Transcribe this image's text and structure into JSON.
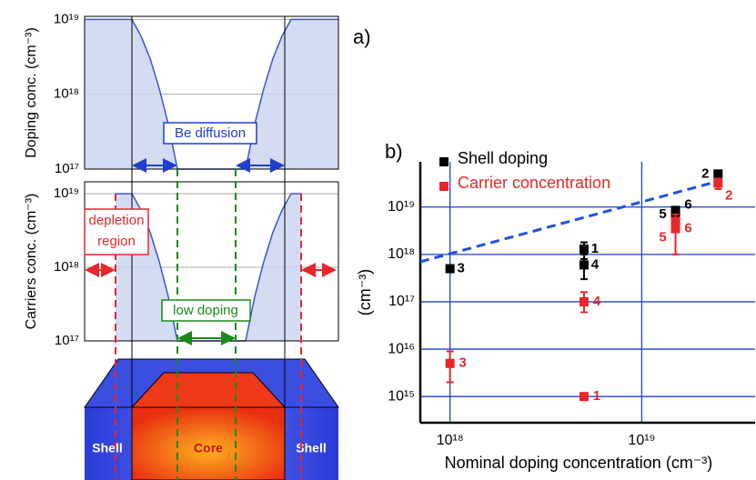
{
  "chart_data": [
    {
      "type": "area",
      "ylabel": "Doping conc. (cm⁻³)",
      "xlim": [
        0,
        279
      ],
      "x": [
        0,
        52,
        62,
        72,
        82,
        92,
        102,
        177,
        187,
        197,
        207,
        217,
        227,
        279
      ],
      "values": [
        1e+19,
        1e+19,
        6e+18,
        3e+18,
        1.2e+18,
        4e+17,
        1e+17,
        1e+17,
        4e+17,
        1.2e+18,
        3e+18,
        6e+18,
        1e+19,
        1e+19
      ],
      "ylim": [
        1e+17,
        1.1e+19
      ],
      "log_y": true,
      "yticks": [
        {
          "value": 1e+17,
          "label": "10¹⁷"
        },
        {
          "value": 1e+18,
          "label": "10¹⁸"
        },
        {
          "value": 1e+19,
          "label": "10¹⁹"
        }
      ],
      "color": "#3a55d0",
      "fill": "#cdd6f2",
      "grid": true
    },
    {
      "type": "area",
      "ylabel": "Carriers conc. (cm⁻³)",
      "xlim": [
        0,
        279
      ],
      "x": [
        34,
        52,
        62,
        72,
        82,
        92,
        102,
        177,
        187,
        197,
        207,
        217,
        227,
        238
      ],
      "values": [
        1e+19,
        1e+19,
        6e+18,
        3e+18,
        1.2e+18,
        4e+17,
        1e+17,
        1e+17,
        4e+17,
        1.2e+18,
        3e+18,
        6e+18,
        1e+19,
        1e+19
      ],
      "ylim": [
        1e+17,
        1.45e+19
      ],
      "log_y": true,
      "yticks": [
        {
          "value": 1e+17,
          "label": "10¹⁷"
        },
        {
          "value": 1e+18,
          "label": "10¹⁸"
        },
        {
          "value": 1e+19,
          "label": "10¹⁹"
        }
      ],
      "color": "#3a55d0",
      "fill": "#cdd6f2",
      "grid": true
    },
    {
      "type": "scatter",
      "xlabel": "Nominal doping concentration (cm⁻³)",
      "ylabel": "(cm⁻³)",
      "log_x": true,
      "log_y": true,
      "grid": true,
      "legend": "top-left",
      "xlim": [
        7e+17,
        3.9e+19
      ],
      "ylim": [
        280000000000000.0,
        9e+19
      ],
      "xticks": [
        {
          "value": 1e+18,
          "label": "10¹⁸"
        },
        {
          "value": 1e+19,
          "label": "10¹⁹"
        }
      ],
      "yticks": [
        {
          "value": 1000000000000000.0,
          "label": "10¹⁵"
        },
        {
          "value": 1e+16,
          "label": "10¹⁶"
        },
        {
          "value": 1e+17,
          "label": "10¹⁷"
        },
        {
          "value": 1e+18,
          "label": "10¹⁸"
        },
        {
          "value": 1e+19,
          "label": "10¹⁹"
        }
      ],
      "series": [
        {
          "name": "Shell doping",
          "color": "#000000",
          "x": [
            1e+18,
            5e+18,
            5e+18,
            1.5e+19,
            1.5e+19,
            2.5e+19
          ],
          "values": [
            5e+17,
            1.3e+18,
            6e+17,
            7e+18,
            8.5e+18,
            5e+19
          ],
          "err_low": [
            null,
            8e+17,
            3e+17,
            null,
            null,
            null
          ],
          "err_high": [
            null,
            1.8e+18,
            1e+18,
            null,
            null,
            null
          ],
          "point_labels": [
            "3",
            "1",
            "4",
            "5",
            "6",
            "2"
          ]
        },
        {
          "name": "Carrier concentration",
          "color": "#e8262b",
          "x": [
            1e+18,
            5e+18,
            5e+18,
            1.5e+19,
            1.5e+19,
            2.5e+19
          ],
          "values": [
            5000000000000000.0,
            1e+17,
            1000000000000000.0,
            3.5e+18,
            5e+18,
            3.2e+19
          ],
          "err_low": [
            2000000000000000.0,
            6e+16,
            null,
            1e+18,
            null,
            2.4e+19
          ],
          "err_high": [
            9000000000000000.0,
            1.6e+17,
            null,
            7e+18,
            null,
            4e+19
          ],
          "point_labels": [
            "3",
            "4",
            "1",
            "5",
            "6",
            "2"
          ]
        }
      ],
      "fit": {
        "x": [
          7e+17,
          2.5e+19
        ],
        "values": [
          7e+17,
          3.5e+19
        ],
        "color": "#2050e0"
      }
    }
  ],
  "labels": {
    "panel_a": "a)",
    "panel_b": "b)",
    "be_diffusion": "Be diffusion",
    "depletion": [
      "depletion",
      "region"
    ],
    "low_doping": "low doping",
    "shell_left": "Shell",
    "core": "Core",
    "shell_right": "Shell"
  }
}
